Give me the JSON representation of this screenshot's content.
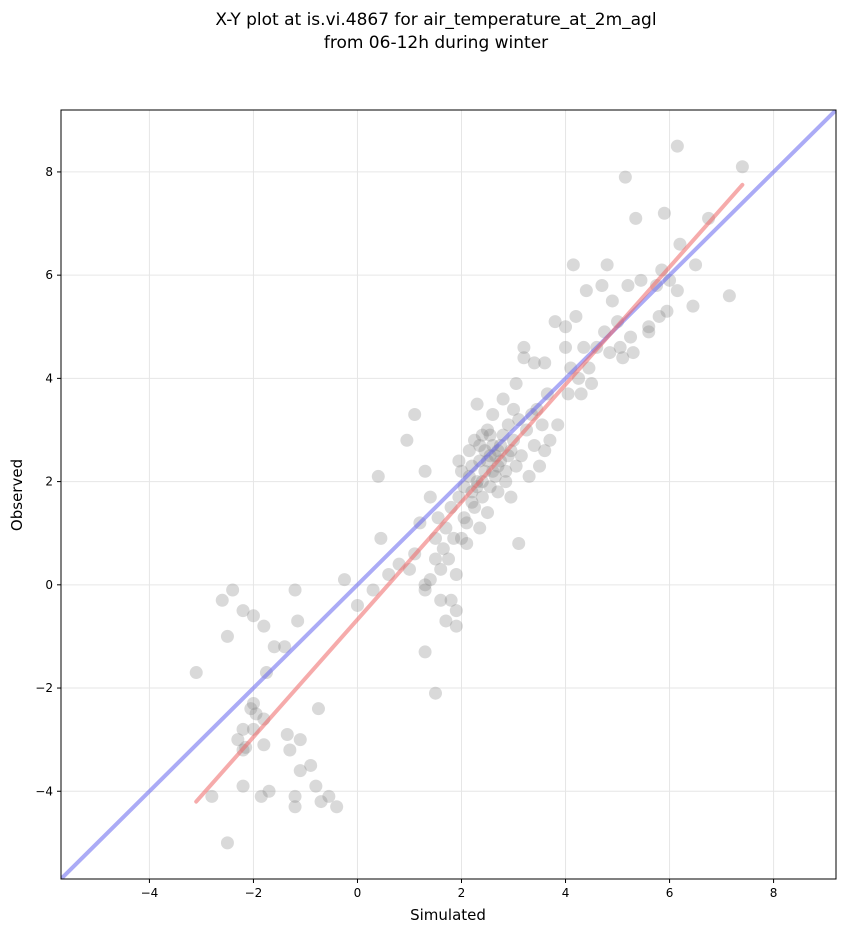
{
  "chart_data": {
    "type": "scatter",
    "title_line1": "X-Y plot at is.vi.4867 for air_temperature_at_2m_agl",
    "title_line2": "from 06-12h during winter",
    "xlabel": "Simulated",
    "ylabel": "Observed",
    "xlim": [
      -5.7,
      9.2
    ],
    "ylim": [
      -5.7,
      9.2
    ],
    "x_ticks": [
      -4,
      -2,
      0,
      2,
      4,
      6,
      8
    ],
    "y_ticks": [
      -4,
      -2,
      0,
      2,
      4,
      6,
      8
    ],
    "grid": true,
    "point_color": "#808080",
    "identity_line": {
      "color": "#6666ee",
      "from": [
        -5.7,
        -5.7
      ],
      "to": [
        9.2,
        9.2
      ]
    },
    "regression_line": {
      "color": "#ee6666",
      "from": [
        -3.1,
        -4.2
      ],
      "to": [
        7.4,
        7.75
      ]
    },
    "points": [
      [
        -3.1,
        -1.7
      ],
      [
        -2.8,
        -4.1
      ],
      [
        -2.5,
        -5.0
      ],
      [
        -2.4,
        -0.1
      ],
      [
        -2.6,
        -0.3
      ],
      [
        -2.5,
        -1.0
      ],
      [
        -2.2,
        -0.5
      ],
      [
        -2.0,
        -0.6
      ],
      [
        -1.8,
        -0.8
      ],
      [
        -1.6,
        -1.2
      ],
      [
        -1.4,
        -1.2
      ],
      [
        -1.2,
        -0.1
      ],
      [
        -1.15,
        -0.7
      ],
      [
        -1.75,
        -1.7
      ],
      [
        -2.0,
        -2.3
      ],
      [
        -2.05,
        -2.4
      ],
      [
        -1.95,
        -2.5
      ],
      [
        -1.8,
        -2.6
      ],
      [
        -2.2,
        -2.8
      ],
      [
        -2.3,
        -3.0
      ],
      [
        -2.2,
        -3.2
      ],
      [
        -2.15,
        -3.15
      ],
      [
        -2.0,
        -2.8
      ],
      [
        -1.8,
        -3.1
      ],
      [
        -1.35,
        -2.9
      ],
      [
        -1.3,
        -3.2
      ],
      [
        -1.1,
        -3.0
      ],
      [
        -0.9,
        -3.5
      ],
      [
        -1.1,
        -3.6
      ],
      [
        -0.75,
        -2.4
      ],
      [
        -2.2,
        -3.9
      ],
      [
        -1.7,
        -4.0
      ],
      [
        -1.85,
        -4.1
      ],
      [
        -1.2,
        -4.1
      ],
      [
        -1.2,
        -4.3
      ],
      [
        -0.8,
        -3.9
      ],
      [
        -0.7,
        -4.2
      ],
      [
        -0.55,
        -4.1
      ],
      [
        -0.4,
        -4.3
      ],
      [
        -0.25,
        0.1
      ],
      [
        0.0,
        -0.4
      ],
      [
        0.3,
        -0.1
      ],
      [
        0.4,
        2.1
      ],
      [
        0.45,
        0.9
      ],
      [
        0.6,
        0.2
      ],
      [
        0.8,
        0.4
      ],
      [
        0.95,
        2.8
      ],
      [
        1.1,
        3.3
      ],
      [
        1.0,
        0.3
      ],
      [
        1.1,
        0.6
      ],
      [
        1.2,
        1.2
      ],
      [
        1.3,
        0.0
      ],
      [
        1.3,
        2.2
      ],
      [
        1.4,
        1.7
      ],
      [
        1.5,
        0.5
      ],
      [
        1.5,
        -2.1
      ],
      [
        1.3,
        -1.3
      ],
      [
        1.6,
        -0.3
      ],
      [
        1.7,
        -0.7
      ],
      [
        1.8,
        -0.3
      ],
      [
        1.9,
        -0.5
      ],
      [
        1.9,
        -0.8
      ],
      [
        1.3,
        -0.1
      ],
      [
        1.4,
        0.1
      ],
      [
        1.6,
        0.3
      ],
      [
        1.5,
        0.9
      ],
      [
        1.55,
        1.3
      ],
      [
        1.65,
        0.7
      ],
      [
        1.7,
        1.1
      ],
      [
        1.75,
        0.5
      ],
      [
        1.8,
        1.5
      ],
      [
        1.85,
        0.9
      ],
      [
        1.9,
        0.2
      ],
      [
        1.95,
        1.7
      ],
      [
        2.0,
        0.9
      ],
      [
        2.0,
        2.2
      ],
      [
        2.05,
        1.3
      ],
      [
        2.1,
        0.8
      ],
      [
        2.15,
        2.6
      ],
      [
        2.2,
        1.8
      ],
      [
        2.25,
        1.5
      ],
      [
        2.3,
        3.5
      ],
      [
        2.3,
        2.0
      ],
      [
        2.35,
        2.4
      ],
      [
        2.35,
        1.1
      ],
      [
        2.4,
        2.9
      ],
      [
        2.4,
        1.7
      ],
      [
        2.45,
        2.2
      ],
      [
        2.5,
        3.0
      ],
      [
        2.5,
        1.4
      ],
      [
        2.55,
        2.5
      ],
      [
        2.55,
        1.9
      ],
      [
        2.6,
        2.7
      ],
      [
        2.6,
        3.3
      ],
      [
        2.65,
        2.1
      ],
      [
        2.7,
        2.6
      ],
      [
        2.7,
        1.8
      ],
      [
        2.75,
        2.4
      ],
      [
        2.8,
        2.9
      ],
      [
        2.8,
        3.6
      ],
      [
        2.85,
        2.2
      ],
      [
        2.9,
        2.5
      ],
      [
        2.9,
        3.1
      ],
      [
        2.95,
        1.7
      ],
      [
        3.0,
        2.8
      ],
      [
        3.05,
        2.3
      ],
      [
        3.05,
        3.9
      ],
      [
        3.1,
        3.2
      ],
      [
        3.1,
        0.8
      ],
      [
        3.15,
        2.5
      ],
      [
        3.2,
        4.6
      ],
      [
        3.2,
        4.4
      ],
      [
        3.25,
        3.0
      ],
      [
        3.3,
        2.1
      ],
      [
        3.35,
        3.3
      ],
      [
        3.4,
        2.7
      ],
      [
        3.4,
        4.3
      ],
      [
        3.45,
        3.4
      ],
      [
        3.5,
        2.3
      ],
      [
        3.55,
        3.1
      ],
      [
        3.6,
        4.3
      ],
      [
        3.6,
        2.6
      ],
      [
        3.65,
        3.7
      ],
      [
        3.7,
        2.8
      ],
      [
        3.8,
        5.1
      ],
      [
        3.85,
        3.1
      ],
      [
        4.0,
        4.6
      ],
      [
        4.0,
        5.0
      ],
      [
        4.05,
        3.7
      ],
      [
        4.1,
        4.2
      ],
      [
        4.15,
        6.2
      ],
      [
        4.2,
        5.2
      ],
      [
        4.25,
        4.0
      ],
      [
        4.3,
        3.7
      ],
      [
        4.35,
        4.6
      ],
      [
        4.4,
        5.7
      ],
      [
        4.45,
        4.2
      ],
      [
        4.5,
        3.9
      ],
      [
        4.6,
        4.6
      ],
      [
        4.7,
        5.8
      ],
      [
        4.75,
        4.9
      ],
      [
        4.8,
        6.2
      ],
      [
        4.85,
        4.5
      ],
      [
        4.9,
        5.5
      ],
      [
        5.0,
        5.1
      ],
      [
        5.05,
        4.6
      ],
      [
        5.1,
        4.4
      ],
      [
        5.15,
        7.9
      ],
      [
        5.2,
        5.8
      ],
      [
        5.25,
        4.8
      ],
      [
        5.3,
        4.5
      ],
      [
        5.35,
        7.1
      ],
      [
        5.45,
        5.9
      ],
      [
        5.6,
        5.0
      ],
      [
        5.6,
        4.9
      ],
      [
        5.75,
        5.8
      ],
      [
        5.8,
        5.2
      ],
      [
        5.85,
        6.1
      ],
      [
        5.9,
        7.2
      ],
      [
        5.95,
        5.3
      ],
      [
        6.0,
        5.9
      ],
      [
        6.15,
        5.7
      ],
      [
        6.15,
        8.5
      ],
      [
        6.2,
        6.6
      ],
      [
        6.45,
        5.4
      ],
      [
        6.5,
        6.2
      ],
      [
        6.75,
        7.1
      ],
      [
        7.15,
        5.6
      ],
      [
        7.4,
        8.1
      ],
      [
        2.2,
        2.3
      ],
      [
        2.4,
        2.0
      ],
      [
        2.6,
        2.2
      ],
      [
        2.25,
        2.8
      ],
      [
        2.45,
        2.6
      ],
      [
        2.7,
        2.3
      ],
      [
        2.3,
        1.9
      ],
      [
        2.55,
        2.9
      ],
      [
        2.15,
        2.1
      ],
      [
        2.75,
        2.7
      ],
      [
        2.35,
        2.7
      ],
      [
        2.65,
        2.5
      ],
      [
        2.5,
        2.4
      ],
      [
        2.2,
        1.6
      ],
      [
        2.85,
        2.0
      ],
      [
        2.05,
        1.9
      ],
      [
        1.95,
        2.4
      ],
      [
        2.1,
        1.2
      ],
      [
        2.95,
        2.6
      ],
      [
        3.0,
        3.4
      ]
    ]
  }
}
